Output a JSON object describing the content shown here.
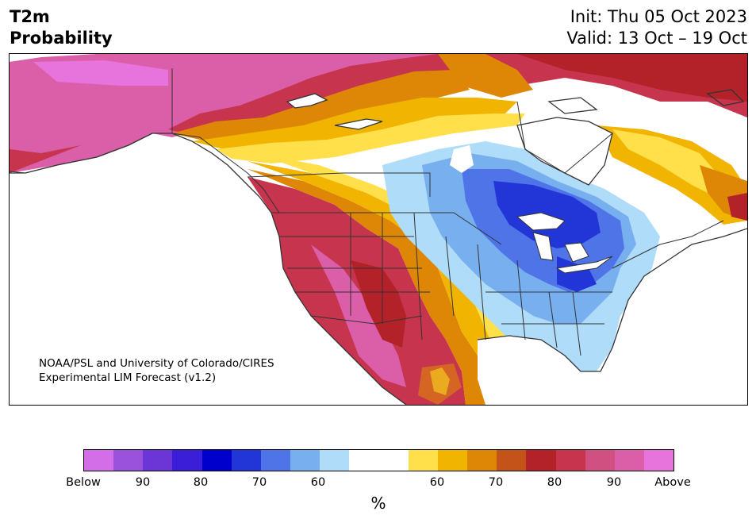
{
  "title": {
    "left_line1": "T2m",
    "left_line2": "Probability",
    "right_line1": "Init: Thu 05 Oct 2023",
    "right_line2": "Valid: 13 Oct – 19 Oct"
  },
  "credit": {
    "line1": "NOAA/PSL and University of Colorado/CIRES",
    "line2": "Experimental LIM Forecast (v1.2)"
  },
  "colorbar": {
    "colors": [
      "#d46ee8",
      "#9a52dc",
      "#6c36d6",
      "#3b1ed8",
      "#0000cd",
      "#2236d8",
      "#4f74e8",
      "#78afef",
      "#afdcf9",
      "#ffffff",
      "#ffffff",
      "#ffe04a",
      "#f1b400",
      "#de8706",
      "#c4531a",
      "#b32229",
      "#c6344e",
      "#d05081",
      "#db5ea8",
      "#e674dc"
    ],
    "ticks": [
      "Below",
      "90",
      "80",
      "70",
      "60",
      "60",
      "70",
      "80",
      "90",
      "Above"
    ],
    "unit": "%"
  },
  "map": {
    "palette": {
      "above_90": "#db5ea8",
      "above_80": "#c6344e",
      "above_70": "#b32229",
      "above_65": "#c4531a",
      "above_60": "#de8706",
      "above_55": "#f1b400",
      "above_50": "#ffe04a",
      "below_50": "#afdcf9",
      "below_60": "#78afef",
      "below_70": "#4f74e8",
      "below_80": "#2236d8",
      "land_border": "#333333",
      "water": "#ffffff"
    }
  }
}
